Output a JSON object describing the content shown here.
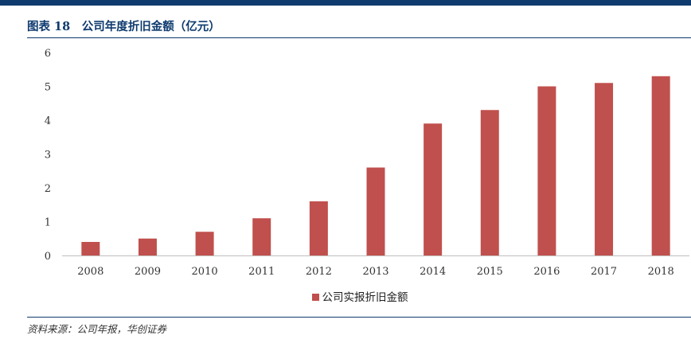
{
  "header": {
    "title": "图表 18　公司年度折旧金额（亿元）"
  },
  "footer": {
    "source": "资料来源：公司年报，华创证券"
  },
  "colors": {
    "bar": "#c0504d",
    "brand": "#0e3a6e"
  },
  "chart_data": {
    "type": "bar",
    "title": "",
    "xlabel": "",
    "ylabel": "",
    "categories": [
      "2008",
      "2009",
      "2010",
      "2011",
      "2012",
      "2013",
      "2014",
      "2015",
      "2016",
      "2017",
      "2018"
    ],
    "series": [
      {
        "name": "公司实报折旧金额",
        "values": [
          0.4,
          0.5,
          0.7,
          1.1,
          1.6,
          2.6,
          3.9,
          4.3,
          5.0,
          5.1,
          5.3
        ]
      }
    ],
    "ylim": [
      0,
      6
    ],
    "yticks": [
      "0",
      "1",
      "2",
      "3",
      "4",
      "5",
      "6"
    ],
    "grid": false,
    "legend_position": "bottom"
  }
}
